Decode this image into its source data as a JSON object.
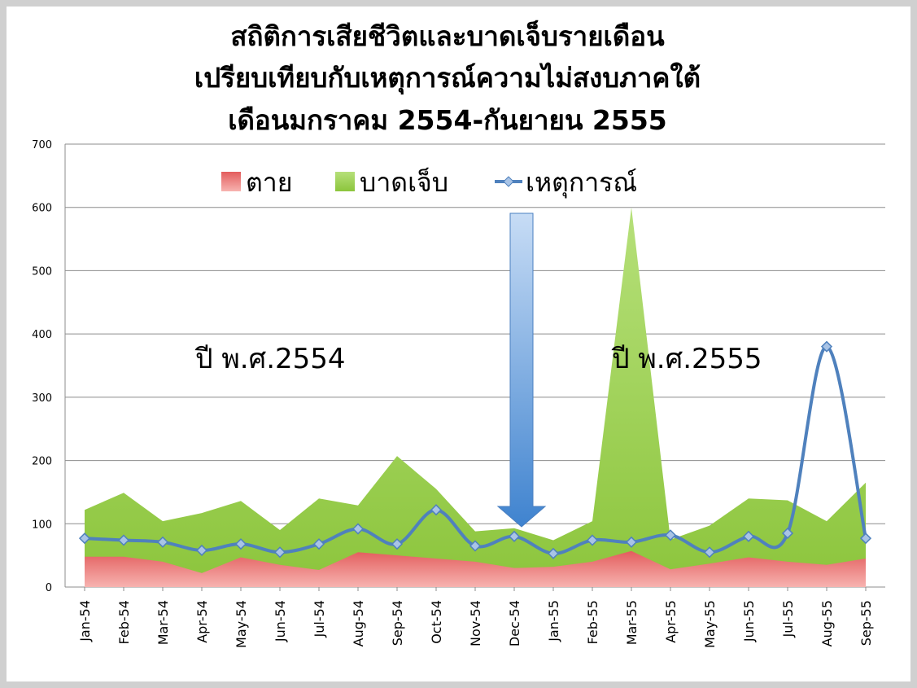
{
  "chart_data": {
    "type": "area",
    "title": [
      "สถิติการเสียชีวิตและบาดเจ็บรายเดือน",
      "เปรียบเทียบกับเหตุการณ์ความไม่สงบภาคใต้",
      "เดือนมกราคม 2554-กันยายน 2555"
    ],
    "annotations": [
      "ปี พ.ศ.2554",
      "ปี พ.ศ.2555"
    ],
    "categories": [
      "Jan-54",
      "Feb-54",
      "Mar-54",
      "Apr-54",
      "May-54",
      "Jun-54",
      "Jul-54",
      "Aug-54",
      "Sep-54",
      "Oct-54",
      "Nov-54",
      "Dec-54",
      "Jan-55",
      "Feb-55",
      "Mar-55",
      "Apr-55",
      "May-55",
      "Jun-55",
      "Jul-55",
      "Aug-55",
      "Sep-55"
    ],
    "series": [
      {
        "name": "ตาย",
        "type": "area",
        "color": "#e35d5d",
        "values": [
          48,
          48,
          40,
          22,
          47,
          35,
          27,
          55,
          50,
          45,
          40,
          30,
          32,
          40,
          57,
          28,
          37,
          47,
          40,
          35,
          45
        ]
      },
      {
        "name": "บาดเจ็บ",
        "type": "area",
        "color": "#9acd50",
        "values": [
          122,
          149,
          104,
          117,
          136,
          90,
          140,
          129,
          207,
          155,
          88,
          93,
          74,
          104,
          600,
          75,
          97,
          140,
          137,
          104,
          165
        ]
      },
      {
        "name": "เหตุการณ์",
        "type": "line",
        "smooth": true,
        "color": "#4f81bd",
        "values": [
          77,
          74,
          71,
          58,
          68,
          55,
          68,
          92,
          68,
          122,
          65,
          80,
          53,
          74,
          71,
          82,
          55,
          80,
          85,
          380,
          77
        ]
      }
    ],
    "ylim": [
      0,
      700
    ],
    "yticks": [
      0,
      100,
      200,
      300,
      400,
      500,
      600,
      700
    ],
    "grid": true,
    "legend": "top"
  }
}
